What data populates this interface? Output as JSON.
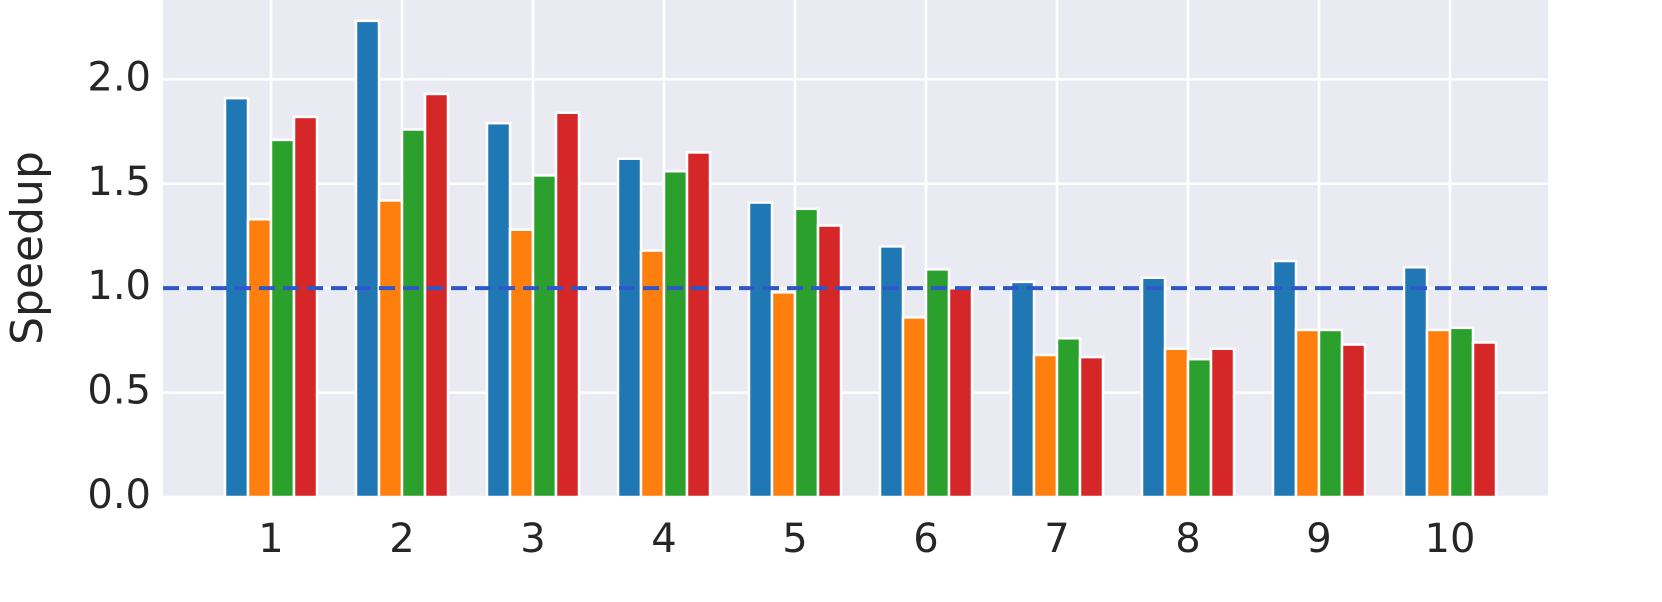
{
  "chart_data": {
    "type": "bar",
    "y_label": "Speedup",
    "categories": [
      "1",
      "2",
      "3",
      "4",
      "5",
      "6",
      "7",
      "8",
      "9",
      "10"
    ],
    "series": [
      {
        "color": "#1f77b4",
        "values": [
          1.91,
          2.28,
          1.79,
          1.62,
          1.41,
          1.2,
          1.03,
          1.05,
          1.13,
          1.1
        ]
      },
      {
        "color": "#ff7f0e",
        "values": [
          1.33,
          1.42,
          1.28,
          1.18,
          0.98,
          0.86,
          0.68,
          0.71,
          0.8,
          0.8
        ]
      },
      {
        "color": "#2ca02c",
        "values": [
          1.71,
          1.76,
          1.54,
          1.56,
          1.38,
          1.09,
          0.76,
          0.66,
          0.8,
          0.81
        ]
      },
      {
        "color": "#d62728",
        "values": [
          1.82,
          1.93,
          1.84,
          1.65,
          1.3,
          1.0,
          0.67,
          0.71,
          0.73,
          0.74
        ]
      }
    ],
    "ylim": [
      0,
      2.38
    ],
    "yticks": [
      {
        "value": 0,
        "label": "0.0"
      },
      0.5,
      {
        "value": 1,
        "label": "1.0"
      },
      1.5,
      {
        "value": 2,
        "label": "2.0"
      }
    ],
    "grid": true,
    "reference_line": {
      "value": 1,
      "color": "#2e58c8"
    }
  }
}
